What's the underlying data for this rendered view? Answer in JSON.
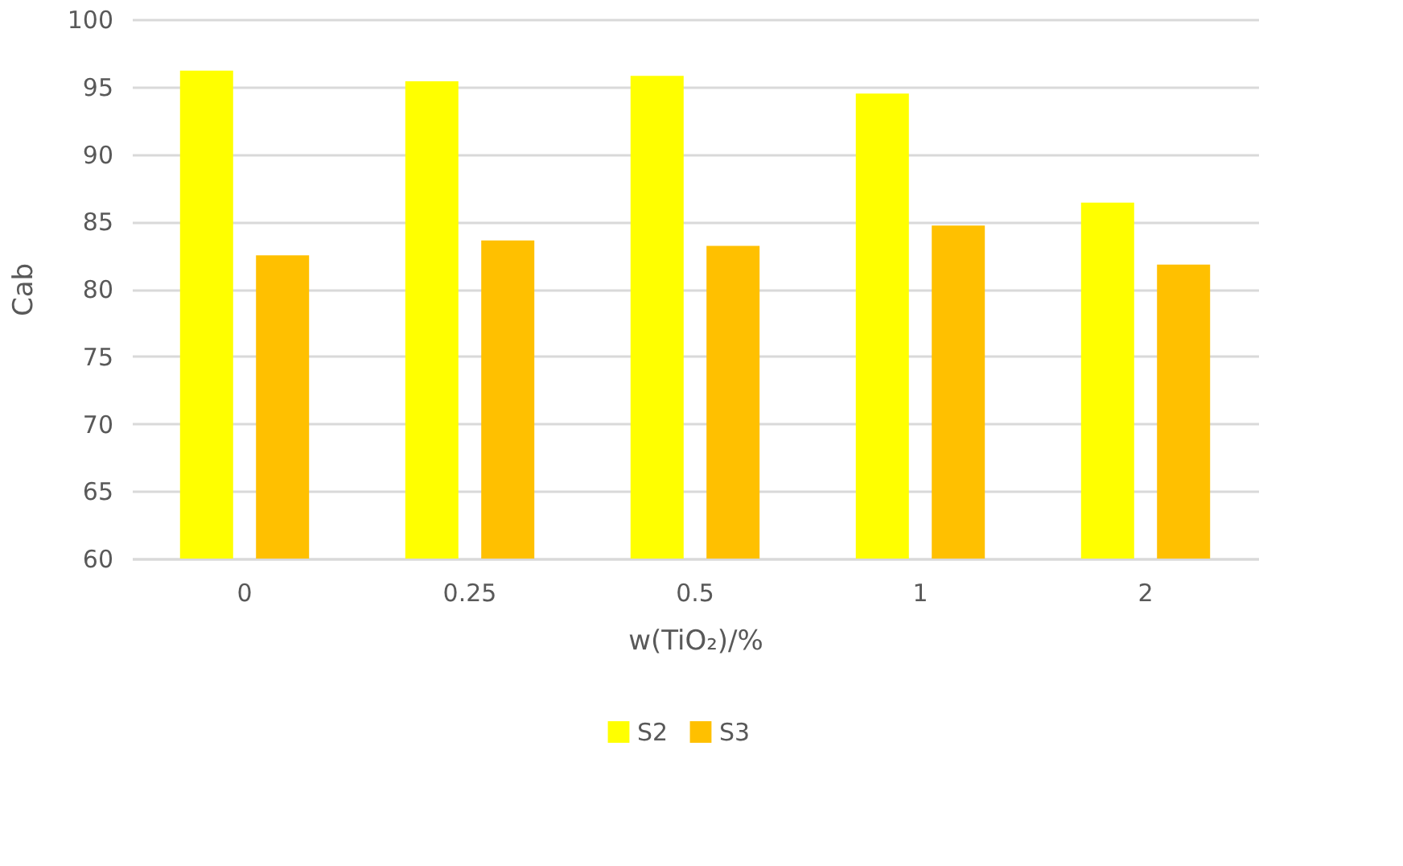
{
  "chart_data": {
    "type": "bar",
    "xlabel": "w(TiO₂)/%",
    "ylabel": "Cab",
    "categories": [
      "0",
      "0.25",
      "0.5",
      "1",
      "2"
    ],
    "series": [
      {
        "name": "S2",
        "color": "#ffff00",
        "values": [
          96.2,
          95.4,
          95.8,
          94.5,
          86.4
        ]
      },
      {
        "name": "S3",
        "color": "#ffc000",
        "values": [
          82.5,
          83.6,
          83.2,
          84.7,
          81.8
        ]
      }
    ],
    "ylim": [
      60,
      100
    ],
    "yticks": [
      60,
      65,
      70,
      75,
      80,
      85,
      90,
      95,
      100
    ],
    "grid": "y",
    "legend": "bottom"
  }
}
